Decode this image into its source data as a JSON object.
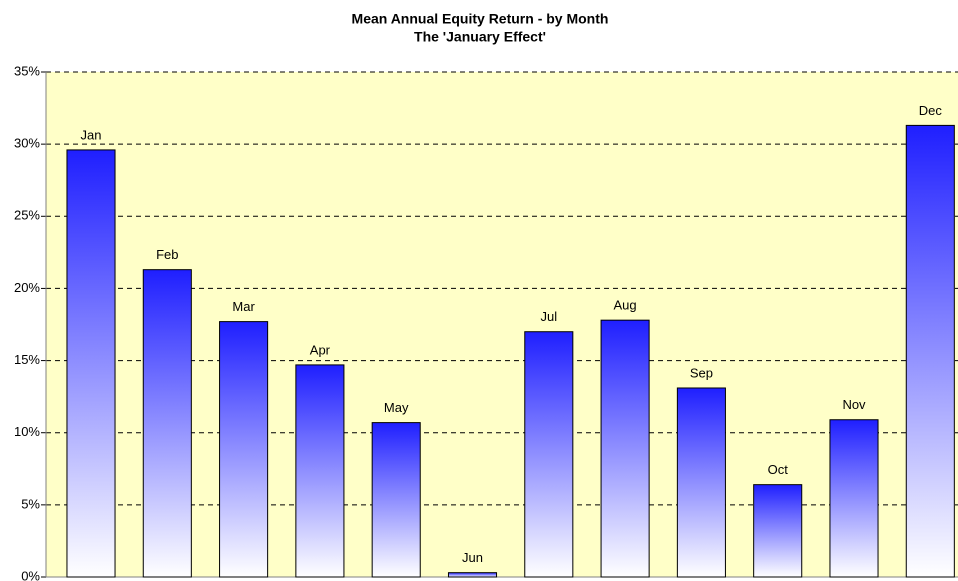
{
  "chart_data": {
    "type": "bar",
    "title": "Mean Annual Equity Return - by Month",
    "subtitle": "The 'January Effect'",
    "categories": [
      "Jan",
      "Feb",
      "Mar",
      "Apr",
      "May",
      "Jun",
      "Jul",
      "Aug",
      "Sep",
      "Oct",
      "Nov",
      "Dec"
    ],
    "values": [
      29.6,
      21.3,
      17.7,
      14.7,
      10.7,
      0.3,
      17.0,
      17.8,
      13.1,
      6.4,
      10.9,
      31.3
    ],
    "color": "#1f1fff",
    "ylim": [
      0,
      35
    ],
    "yticks": [
      {
        "value": 0,
        "label": "0%"
      },
      {
        "value": 5,
        "label": "5%"
      },
      {
        "value": 10,
        "label": "10%"
      },
      {
        "value": 15,
        "label": "15%"
      },
      {
        "value": 20,
        "label": "20%"
      },
      {
        "value": 25,
        "label": "25%"
      },
      {
        "value": 30,
        "label": "30%"
      },
      {
        "value": 35,
        "label": "35%"
      }
    ],
    "grid": true
  }
}
